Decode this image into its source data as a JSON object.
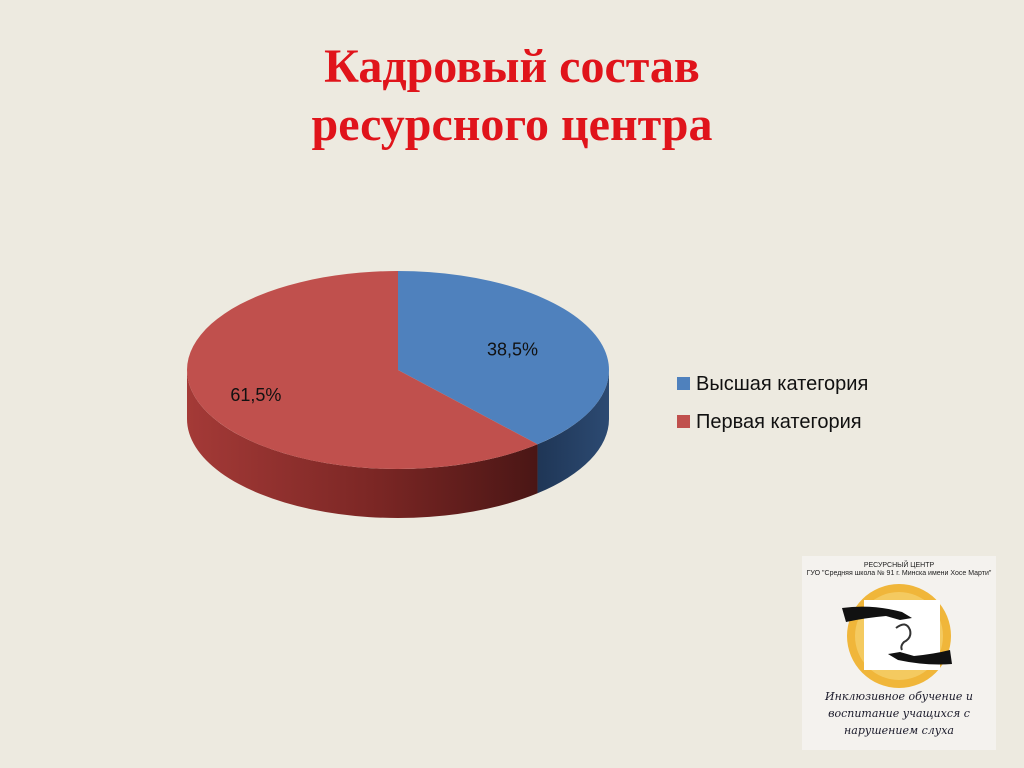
{
  "title": {
    "line1": "Кадровый состав",
    "line2": "ресурсного центра"
  },
  "chart_data": {
    "type": "pie",
    "style": "3d",
    "categories": [
      "Высшая категория",
      "Первая категория"
    ],
    "values": [
      38.5,
      61.5
    ],
    "labels": [
      "38,5%",
      "61,5%"
    ],
    "colors": [
      "#4f81bd",
      "#c0504d"
    ],
    "legend": "right"
  },
  "logo": {
    "line1": "РЕСУРСНЫЙ ЦЕНТР",
    "line2": "ГУО \"Средняя школа № 91 г. Минска имени Хосе Марти\"",
    "caption1": "Инклюзивное обучение и",
    "caption2": "воспитание учащихся с",
    "caption3": "нарушением слуха"
  }
}
